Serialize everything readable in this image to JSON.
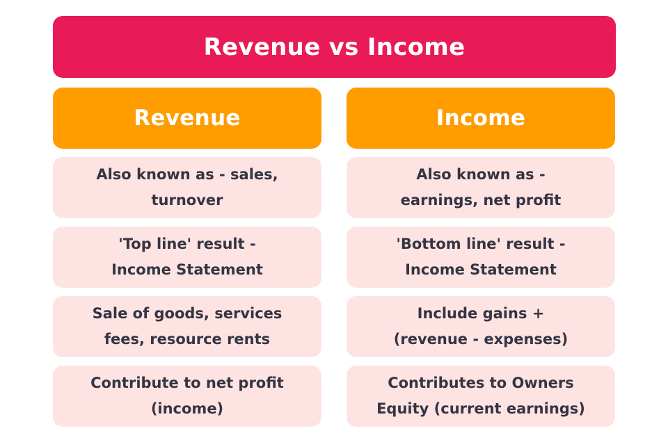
{
  "title": "Revenue vs Income",
  "colors": {
    "title_bg": "#e81a58",
    "header_bg": "#ff9d00",
    "cell_bg": "#fde4e3",
    "cell_text": "#353443"
  },
  "columns": [
    {
      "header": "Revenue",
      "rows": [
        [
          "Also known as - sales,",
          "turnover"
        ],
        [
          "'Top line' result -",
          "Income Statement"
        ],
        [
          "Sale of goods, services",
          "fees, resource rents"
        ],
        [
          "Contribute to net profit",
          "(income)"
        ]
      ]
    },
    {
      "header": "Income",
      "rows": [
        [
          "Also known as -",
          "earnings, net profit"
        ],
        [
          "'Bottom line' result -",
          "Income Statement"
        ],
        [
          "Include gains +",
          "(revenue - expenses)"
        ],
        [
          "Contributes to Owners",
          "Equity (current earnings)"
        ]
      ]
    }
  ]
}
